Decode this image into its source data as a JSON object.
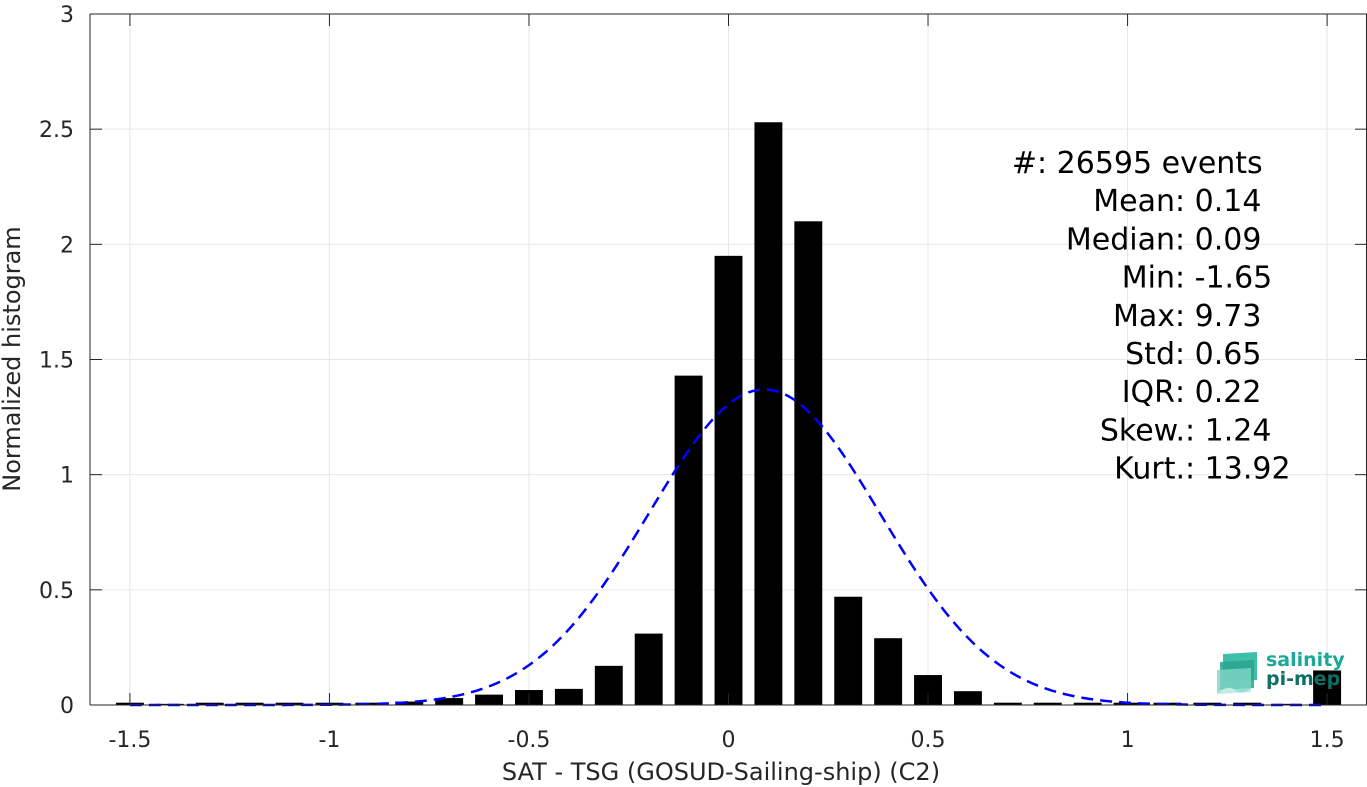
{
  "chart_data": {
    "type": "bar",
    "xlabel": "SAT - TSG (GOSUD-Sailing-ship) (C2)",
    "ylabel": "Normalized histogram",
    "xlim": [
      -1.6,
      1.6
    ],
    "ylim": [
      0,
      3
    ],
    "xticks": [
      -1.5,
      -1,
      -0.5,
      0,
      0.5,
      1,
      1.5
    ],
    "xtick_labels": [
      "-1.5",
      "-1",
      "-0.5",
      "0",
      "0.5",
      "1",
      "1.5"
    ],
    "yticks": [
      0,
      0.5,
      1,
      1.5,
      2,
      2.5,
      3
    ],
    "ytick_labels": [
      "0",
      "0.5",
      "1",
      "1.5",
      "2",
      "2.5",
      "3"
    ],
    "grid": true,
    "bin_width": 0.1,
    "bars": {
      "x": [
        -1.5,
        -1.4,
        -1.3,
        -1.2,
        -1.1,
        -1.0,
        -0.9,
        -0.8,
        -0.7,
        -0.6,
        -0.5,
        -0.4,
        -0.3,
        -0.2,
        -0.1,
        0.0,
        0.1,
        0.2,
        0.3,
        0.4,
        0.5,
        0.6,
        0.7,
        0.8,
        0.9,
        1.0,
        1.1,
        1.2,
        1.3,
        1.4,
        1.5
      ],
      "values": [
        0.01,
        0.005,
        0.01,
        0.01,
        0.01,
        0.01,
        0.01,
        0.015,
        0.03,
        0.045,
        0.065,
        0.07,
        0.17,
        0.31,
        1.43,
        1.95,
        2.53,
        2.1,
        0.47,
        0.29,
        0.13,
        0.06,
        0.01,
        0.01,
        0.01,
        0.01,
        0.01,
        0.01,
        0.01,
        0.005,
        0.15
      ]
    },
    "fit_curve": {
      "style": "dashed",
      "color": "#0000ff",
      "mean": 0.09,
      "std": 0.29,
      "peak": 1.37
    },
    "stats": {
      "lines": [
        {
          "label": "#  ",
          "value": ": 26595 events"
        },
        {
          "label": "Mean ",
          "value": ": 0.14"
        },
        {
          "label": "Median ",
          "value": ": 0.09"
        },
        {
          "label": "Min ",
          "value": ": -1.65"
        },
        {
          "label": "Max ",
          "value": ": 9.73"
        },
        {
          "label": "Std ",
          "value": ": 0.65"
        },
        {
          "label": "IQR ",
          "value": ": 0.22"
        },
        {
          "label": "Skew. ",
          "value": ": 1.24"
        },
        {
          "label": "Kurt. ",
          "value": ": 13.92"
        }
      ]
    }
  },
  "logo": {
    "line1": "salinity",
    "line2": "pi-mep",
    "color1": "#1aa898",
    "color2": "#0e6f64"
  },
  "colors": {
    "bar": "#000000",
    "fit": "#0000ff",
    "grid": "#e6e6e6",
    "axis": "#262626"
  }
}
